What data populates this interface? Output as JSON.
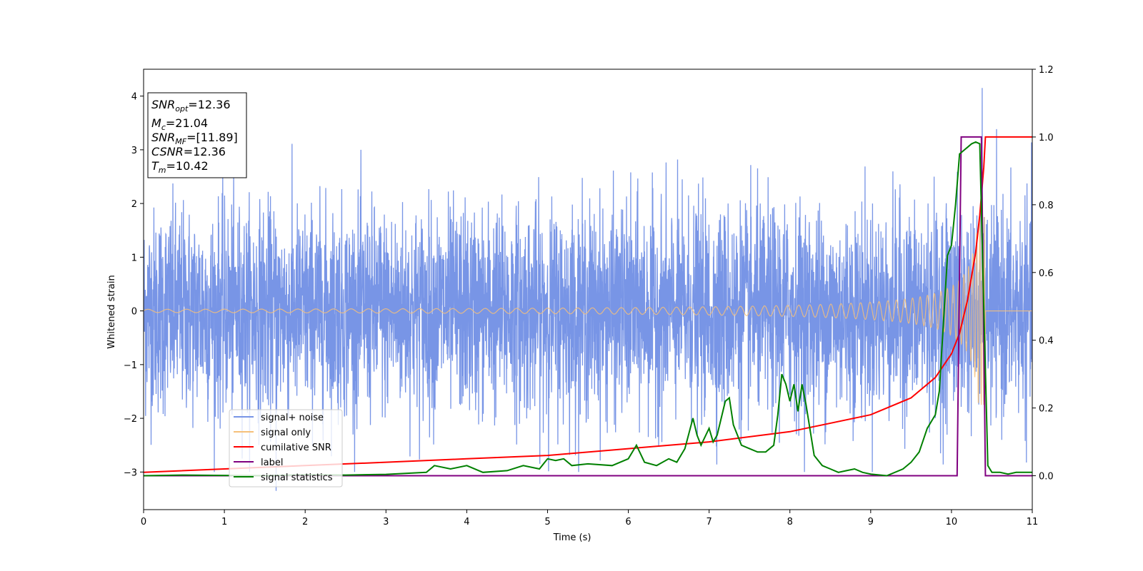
{
  "chart_data": {
    "type": "line",
    "xlabel": "Time (s)",
    "ylabel": "Whitened strain",
    "xlim": [
      0,
      11
    ],
    "ylim_left": [
      -3.7,
      4.5
    ],
    "ylim_right": [
      -0.1,
      1.2
    ],
    "x_ticks": [
      "0",
      "1",
      "2",
      "3",
      "4",
      "5",
      "6",
      "7",
      "8",
      "9",
      "10",
      "11"
    ],
    "y_ticks_left": [
      "−3",
      "−2",
      "−1",
      "0",
      "1",
      "2",
      "3",
      "4"
    ],
    "y_ticks_right": [
      "0.0",
      "0.2",
      "0.4",
      "0.6",
      "0.8",
      "1.0",
      "1.2"
    ],
    "legend_position": "lower-left",
    "legend": [
      {
        "label": "signal+ noise",
        "color": "#7895e6"
      },
      {
        "label": "signal only",
        "color": "#f5c07a"
      },
      {
        "label": "cumilative SNR",
        "color": "#ff0000"
      },
      {
        "label": "label",
        "color": "#800080"
      },
      {
        "label": "signal statistics",
        "color": "#008000"
      }
    ],
    "annotation": {
      "snr_opt": {
        "name": "SNR",
        "sub": "opt",
        "value": "=12.36"
      },
      "mc": {
        "name": "M",
        "sub": "c",
        "value": "=21.04"
      },
      "snr_mf": {
        "name": "SNR",
        "sub": "MF",
        "value": "=[11.89]"
      },
      "csnr": {
        "name": "CSNR",
        "value": "=12.36"
      },
      "tm": {
        "name": "T",
        "sub": "m",
        "value": "=10.42"
      }
    },
    "series": [
      {
        "name": "signal+ noise",
        "axis": "left",
        "style": "noise",
        "description_values": {
          "std": 0.95,
          "peak_x": 10.38,
          "peak_y": 4.15,
          "min_x": 1.64,
          "min_y": -3.35
        }
      },
      {
        "name": "signal only",
        "axis": "left",
        "style": "chirp",
        "description_values": {
          "merger_time": 10.42,
          "max_amplitude": 1.75
        }
      },
      {
        "name": "cumilative SNR",
        "axis": "right",
        "x": [
          0,
          1,
          2,
          3,
          4,
          5,
          6,
          7,
          8,
          9,
          9.5,
          9.8,
          10,
          10.1,
          10.2,
          10.3,
          10.35,
          10.4,
          10.42,
          11
        ],
        "y": [
          0.01,
          0.02,
          0.03,
          0.04,
          0.05,
          0.06,
          0.08,
          0.1,
          0.13,
          0.18,
          0.23,
          0.29,
          0.36,
          0.42,
          0.52,
          0.66,
          0.77,
          0.91,
          1.0,
          1.0
        ]
      },
      {
        "name": "label",
        "axis": "right",
        "x": [
          0,
          10.07,
          10.12,
          10.37,
          10.42,
          11
        ],
        "y": [
          0,
          0,
          1,
          1,
          0,
          0
        ]
      },
      {
        "name": "signal statistics",
        "axis": "right",
        "x": [
          0,
          0.5,
          1,
          1.5,
          2,
          2.5,
          3,
          3.5,
          3.6,
          3.8,
          4,
          4.2,
          4.5,
          4.7,
          4.9,
          5.0,
          5.1,
          5.2,
          5.3,
          5.5,
          5.8,
          6.0,
          6.1,
          6.2,
          6.35,
          6.5,
          6.6,
          6.7,
          6.8,
          6.85,
          6.9,
          7.0,
          7.05,
          7.1,
          7.2,
          7.25,
          7.3,
          7.4,
          7.5,
          7.6,
          7.7,
          7.8,
          7.85,
          7.9,
          7.95,
          8.0,
          8.05,
          8.1,
          8.15,
          8.2,
          8.3,
          8.4,
          8.5,
          8.6,
          8.7,
          8.8,
          8.9,
          9.0,
          9.2,
          9.4,
          9.5,
          9.6,
          9.7,
          9.8,
          9.85,
          9.9,
          9.95,
          10.0,
          10.05,
          10.1,
          10.15,
          10.2,
          10.25,
          10.3,
          10.35,
          10.4,
          10.45,
          10.5,
          10.6,
          10.7,
          10.8,
          10.9,
          11.0
        ],
        "y": [
          0.0,
          0.002,
          0.001,
          0.0,
          0.003,
          0.002,
          0.004,
          0.01,
          0.03,
          0.02,
          0.03,
          0.01,
          0.015,
          0.03,
          0.02,
          0.05,
          0.045,
          0.05,
          0.03,
          0.035,
          0.03,
          0.05,
          0.09,
          0.04,
          0.03,
          0.05,
          0.04,
          0.08,
          0.17,
          0.12,
          0.09,
          0.14,
          0.1,
          0.12,
          0.22,
          0.23,
          0.15,
          0.09,
          0.08,
          0.07,
          0.07,
          0.09,
          0.18,
          0.3,
          0.27,
          0.22,
          0.27,
          0.19,
          0.27,
          0.21,
          0.06,
          0.03,
          0.02,
          0.01,
          0.015,
          0.02,
          0.01,
          0.005,
          0.0,
          0.02,
          0.04,
          0.07,
          0.14,
          0.18,
          0.25,
          0.45,
          0.65,
          0.68,
          0.8,
          0.95,
          0.96,
          0.97,
          0.98,
          0.985,
          0.98,
          0.5,
          0.03,
          0.01,
          0.01,
          0.005,
          0.01,
          0.01,
          0.01
        ]
      }
    ]
  }
}
